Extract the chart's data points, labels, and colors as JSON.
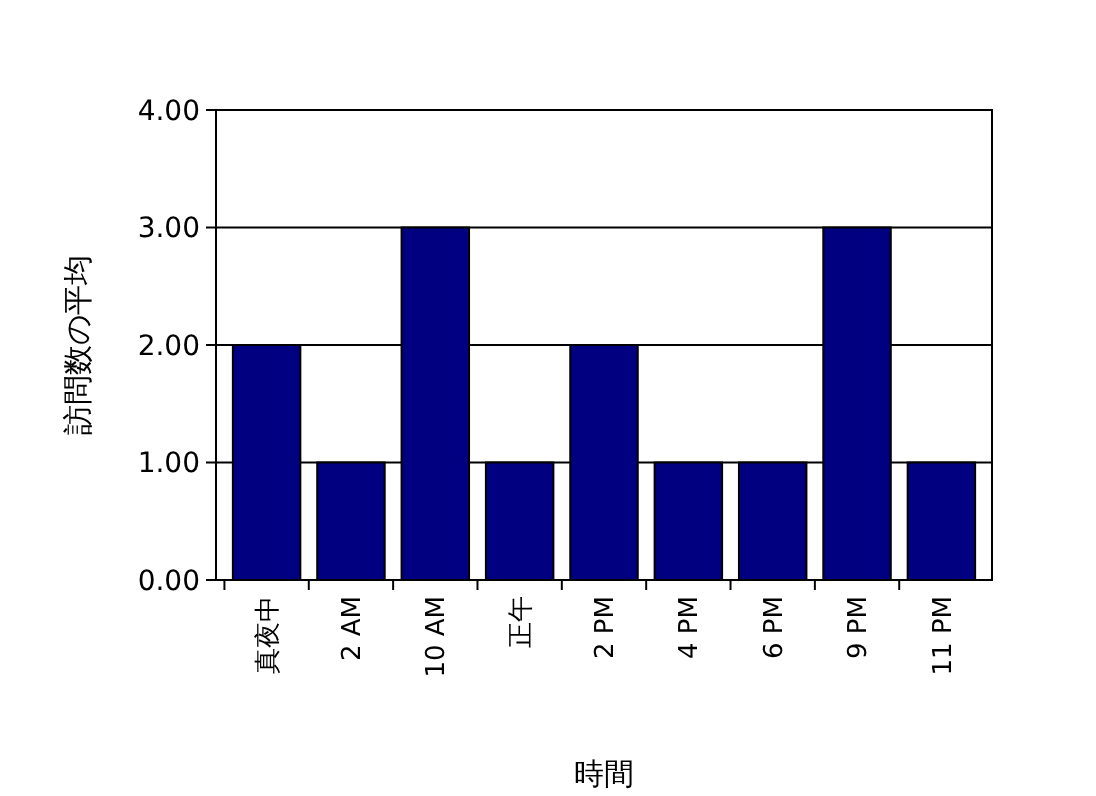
{
  "chart_data": {
    "type": "bar",
    "xlabel": "時間",
    "ylabel": "訪問数の平均",
    "categories": [
      "真夜中",
      "2 AM",
      "10 AM",
      "正午",
      "2 PM",
      "4 PM",
      "6 PM",
      "9 PM",
      "11 PM"
    ],
    "values": [
      2,
      1,
      3,
      1,
      2,
      1,
      1,
      3,
      1
    ],
    "color": "#000080",
    "ylim": [
      0,
      4
    ],
    "yticks": [
      {
        "value": 0,
        "label": "0.00"
      },
      {
        "value": 1,
        "label": "1.00"
      },
      {
        "value": 2,
        "label": "2.00"
      },
      {
        "value": 3,
        "label": "3.00"
      },
      {
        "value": 4,
        "label": "4.00"
      }
    ],
    "grid": "y"
  }
}
